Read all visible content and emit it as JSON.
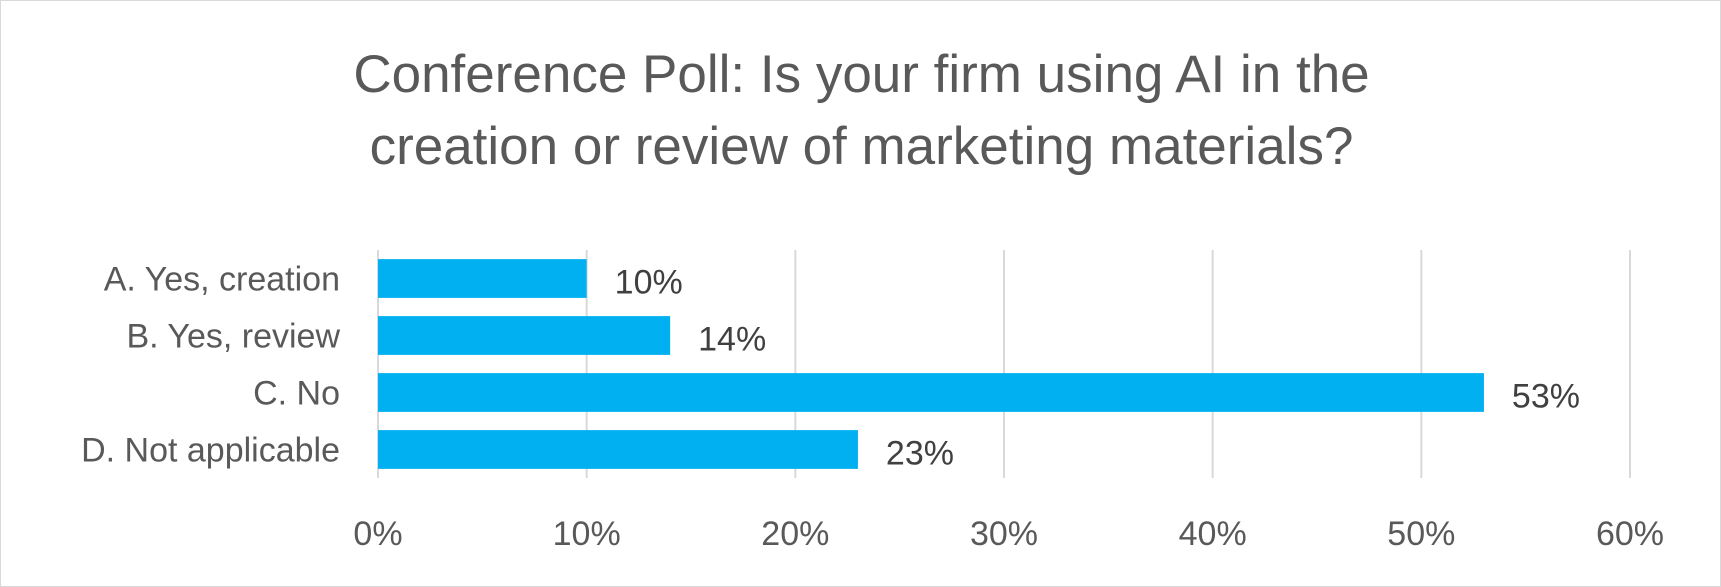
{
  "chart_data": {
    "type": "bar",
    "orientation": "horizontal",
    "title": "Conference Poll: Is your firm using AI in the\ncreation or review of marketing materials?",
    "categories": [
      "A. Yes, creation",
      "B. Yes, review",
      "C. No",
      "D. Not applicable"
    ],
    "values": [
      10,
      14,
      53,
      23
    ],
    "data_labels": [
      "10%",
      "14%",
      "53%",
      "23%"
    ],
    "xlim": [
      0,
      60
    ],
    "x_ticks": [
      0,
      10,
      20,
      30,
      40,
      50,
      60
    ],
    "x_tick_labels": [
      "0%",
      "10%",
      "20%",
      "30%",
      "40%",
      "50%",
      "60%"
    ],
    "xlabel": "",
    "ylabel": "",
    "grid": "vertical",
    "legend": "none",
    "bar_color": "#00b0f0"
  }
}
